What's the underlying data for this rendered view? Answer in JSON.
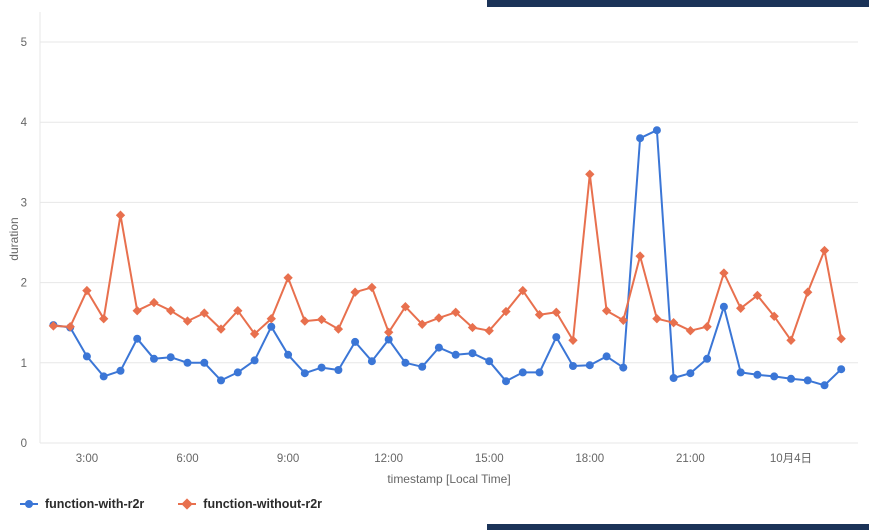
{
  "window": {
    "chrome_color": "#1b3358"
  },
  "chart_data": {
    "type": "line",
    "title": "",
    "xlabel": "timestamp [Local Time]",
    "ylabel": "duration",
    "xlim": [
      1.6,
      26.0
    ],
    "ylim": [
      0,
      5
    ],
    "yticks": [
      0,
      1,
      2,
      3,
      4,
      5
    ],
    "xticks": [
      {
        "t": 3,
        "label": "3:00"
      },
      {
        "t": 6,
        "label": "6:00"
      },
      {
        "t": 9,
        "label": "9:00"
      },
      {
        "t": 12,
        "label": "12:00"
      },
      {
        "t": 15,
        "label": "15:00"
      },
      {
        "t": 18,
        "label": "18:00"
      },
      {
        "t": 21,
        "label": "21:00"
      },
      {
        "t": 24,
        "label": "10月4日"
      }
    ],
    "grid": true,
    "grid_color": "#e7e7e7",
    "tick_color": "#666666",
    "legend_position": "bottom-left",
    "x": [
      2,
      2.5,
      3,
      3.5,
      4,
      4.5,
      5,
      5.5,
      6,
      6.5,
      7,
      7.5,
      8,
      8.5,
      9,
      9.5,
      10,
      10.5,
      11,
      11.5,
      12,
      12.5,
      13,
      13.5,
      14,
      14.5,
      15,
      15.5,
      16,
      16.5,
      17,
      17.5,
      18,
      18.5,
      19,
      19.5,
      20,
      20.5,
      21,
      21.5,
      22,
      22.5,
      23,
      23.5,
      24,
      24.5,
      25,
      25.5
    ],
    "series": [
      {
        "name": "function-with-r2r",
        "color": "#3b76d6",
        "marker": "circle",
        "values": [
          1.47,
          1.44,
          1.08,
          0.83,
          0.9,
          1.3,
          1.05,
          1.07,
          1.0,
          1.0,
          0.78,
          0.88,
          1.03,
          1.45,
          1.1,
          0.87,
          0.94,
          0.91,
          1.26,
          1.02,
          1.29,
          1.0,
          0.95,
          1.19,
          1.1,
          1.12,
          1.02,
          0.77,
          0.88,
          0.88,
          1.32,
          0.96,
          0.97,
          1.08,
          0.94,
          3.8,
          3.9,
          0.81,
          0.87,
          1.05,
          1.7,
          0.88,
          0.85,
          0.83,
          0.8,
          0.78,
          0.72,
          0.92
        ]
      },
      {
        "name": "function-without-r2r",
        "color": "#e8704e",
        "marker": "diamond",
        "values": [
          1.46,
          1.45,
          1.9,
          1.55,
          2.84,
          1.65,
          1.75,
          1.65,
          1.52,
          1.62,
          1.42,
          1.65,
          1.36,
          1.55,
          2.06,
          1.52,
          1.54,
          1.42,
          1.88,
          1.94,
          1.38,
          1.7,
          1.48,
          1.56,
          1.63,
          1.44,
          1.4,
          1.64,
          1.9,
          1.6,
          1.63,
          1.28,
          3.35,
          1.65,
          1.53,
          2.33,
          1.55,
          1.5,
          1.4,
          1.45,
          2.12,
          1.68,
          1.84,
          1.58,
          1.28,
          1.88,
          2.4,
          1.3
        ]
      }
    ]
  }
}
